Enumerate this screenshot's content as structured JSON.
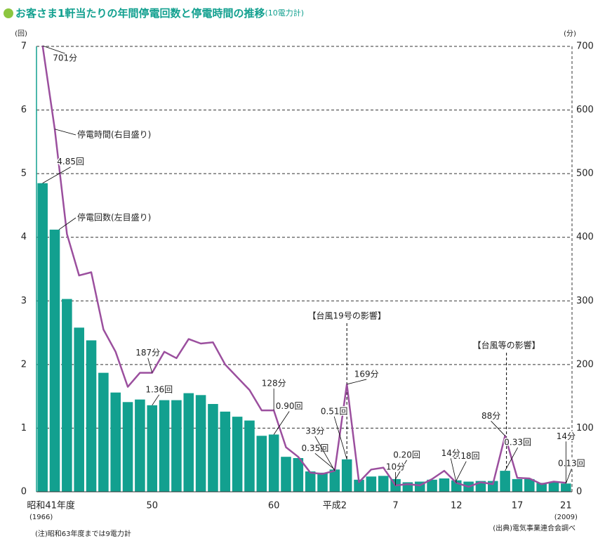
{
  "chart_data": {
    "type": "bar_line",
    "title": "お客さま1軒当たりの年間停電回数と停電時間の推移",
    "subtitle": "(10電力計)",
    "y_label": "(回)",
    "y2_label": "(分)",
    "categories": [
      "昭和41年度",
      null,
      null,
      null,
      null,
      null,
      null,
      null,
      null,
      "50",
      null,
      null,
      null,
      null,
      null,
      null,
      null,
      null,
      null,
      "60",
      null,
      null,
      null,
      null,
      "平成2",
      null,
      null,
      null,
      null,
      "7",
      null,
      null,
      null,
      null,
      "12",
      null,
      null,
      null,
      null,
      "17",
      null,
      null,
      null,
      "21"
    ],
    "first_year": "(1966)",
    "last_year": "(2009)",
    "series": [
      {
        "name": "停電回数(左目盛り)",
        "type": "bar",
        "color": "#12a08f",
        "values": [
          4.85,
          4.12,
          3.03,
          2.58,
          2.38,
          1.87,
          1.56,
          1.41,
          1.45,
          1.36,
          1.44,
          1.44,
          1.55,
          1.52,
          1.38,
          1.26,
          1.18,
          1.12,
          0.88,
          0.9,
          0.55,
          0.53,
          0.32,
          0.3,
          0.35,
          0.51,
          0.19,
          0.24,
          0.25,
          0.2,
          0.15,
          0.16,
          0.19,
          0.21,
          0.18,
          0.16,
          0.17,
          0.17,
          0.33,
          0.2,
          0.2,
          0.14,
          0.15,
          0.13
        ],
        "value_labels": [
          "4.85回",
          null,
          null,
          null,
          null,
          null,
          null,
          null,
          null,
          "1.36回",
          null,
          null,
          null,
          null,
          null,
          null,
          null,
          null,
          null,
          "0.90回",
          null,
          null,
          null,
          null,
          "0.35回",
          "0.51回",
          null,
          null,
          null,
          "0.20回",
          null,
          null,
          null,
          null,
          "0.18回",
          null,
          null,
          null,
          "0.33回",
          null,
          null,
          null,
          null,
          "0.13回"
        ]
      },
      {
        "name": "停電時間(右目盛り)",
        "type": "line",
        "axis": "y2",
        "color": "#9b4f9e",
        "values": [
          701,
          570,
          405,
          340,
          345,
          255,
          220,
          165,
          187,
          187,
          220,
          210,
          240,
          233,
          235,
          200,
          180,
          160,
          128,
          128,
          70,
          55,
          30,
          28,
          33,
          169,
          15,
          35,
          38,
          10,
          12,
          10,
          20,
          33,
          14,
          8,
          15,
          12,
          88,
          22,
          21,
          12,
          16,
          14
        ],
        "value_labels": [
          "701分",
          null,
          null,
          null,
          null,
          null,
          null,
          null,
          null,
          "187分",
          null,
          null,
          null,
          null,
          null,
          null,
          null,
          null,
          null,
          "128分",
          null,
          null,
          null,
          null,
          "33分",
          "169分",
          null,
          null,
          null,
          "10分",
          null,
          null,
          null,
          null,
          "14分",
          null,
          null,
          null,
          "88分",
          null,
          null,
          null,
          null,
          "14分"
        ]
      }
    ],
    "annotations": [
      {
        "text": "【台風19号の影響】",
        "index": 25
      },
      {
        "text": "【台風等の影響】",
        "index": 38
      }
    ],
    "ylim": [
      0,
      7
    ],
    "yticks": [
      0,
      1,
      2,
      3,
      4,
      5,
      6,
      7
    ],
    "y2lim": [
      0,
      700
    ],
    "y2ticks": [
      0,
      100,
      200,
      300,
      400,
      500,
      600,
      700
    ],
    "grid": true,
    "note": "(注)昭和63年度までは9電力計",
    "source": "(出典)電気事業連合会調べ"
  }
}
